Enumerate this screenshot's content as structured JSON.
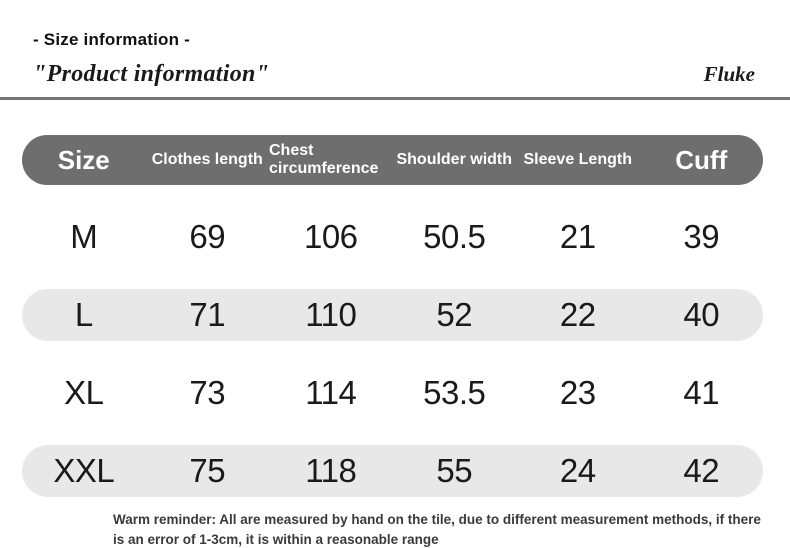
{
  "header": {
    "subtitle": "- Size information -",
    "title": "\"Product information\"",
    "brand": "Fluke"
  },
  "table": {
    "columns": [
      "Size",
      "Clothes length",
      "Chest circumference",
      "Shoulder width",
      "Sleeve Length",
      "Cuff"
    ],
    "rows": [
      {
        "size": "M",
        "values": [
          "69",
          "106",
          "50.5",
          "21",
          "39"
        ]
      },
      {
        "size": "L",
        "values": [
          "71",
          "110",
          "52",
          "22",
          "40"
        ]
      },
      {
        "size": "XL",
        "values": [
          "73",
          "114",
          "53.5",
          "23",
          "41"
        ]
      },
      {
        "size": "XXL",
        "values": [
          "75",
          "118",
          "55",
          "24",
          "42"
        ]
      }
    ]
  },
  "footer": {
    "reminder": "Warm reminder: All are measured by hand on the tile, due to different measurement methods, if there is an error of 1-3cm, it is within a reasonable range"
  },
  "colors": {
    "header_bar": "#6e6e6e",
    "shaded_row": "#e8e8e8",
    "divider": "#737373",
    "text": "#1a1a1a",
    "reminder_text": "#3a3a3a"
  }
}
